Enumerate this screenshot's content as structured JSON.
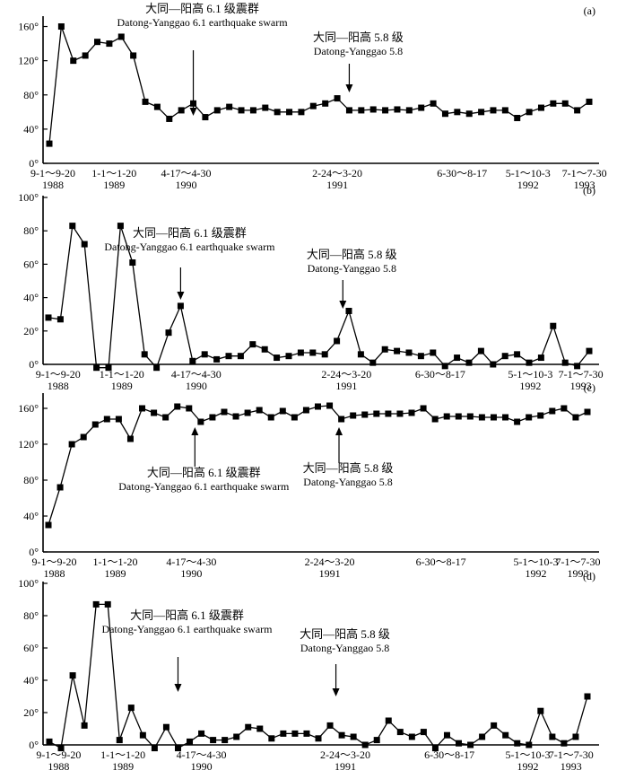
{
  "chart_data": [
    {
      "type": "line",
      "panel_label": "(a)",
      "ylim": [
        0,
        170
      ],
      "yticks": [
        0,
        40,
        80,
        120,
        160
      ],
      "ytick_labels": [
        "0°",
        "40°",
        "80°",
        "120°",
        "160°"
      ],
      "values": [
        23,
        160,
        120,
        126,
        142,
        140,
        148,
        126,
        72,
        66,
        52,
        62,
        70,
        54,
        62,
        66,
        62,
        62,
        65,
        60,
        60,
        60,
        67,
        70,
        76,
        62,
        62,
        63,
        62,
        63,
        62,
        65,
        70,
        58,
        60,
        58,
        60,
        62,
        62,
        53,
        60,
        65,
        70,
        70,
        62,
        72
      ],
      "x_labels": [
        {
          "index": 0.3,
          "line1": "9-1～9-20",
          "line2": "1988"
        },
        {
          "index": 5.4,
          "line1": "1-1～1-20",
          "line2": "1989"
        },
        {
          "index": 11.4,
          "line1": "4-17～4-30",
          "line2": "1990"
        },
        {
          "index": 24.0,
          "line1": "2-24～3-20",
          "line2": "1991"
        },
        {
          "index": 34.4,
          "line1": "6-30～8-17",
          "line2": ""
        },
        {
          "index": 39.9,
          "line1": "5-1～10-3",
          "line2": "1992"
        },
        {
          "index": 44.6,
          "line1": "7-1～7-30",
          "line2": "1993"
        }
      ],
      "events": [
        {
          "index": 12,
          "dir": "down",
          "label_cn": "大同—阳高 6.1 级震群",
          "label_en": "Datong-Yanggao 6.1 earthquake swarm"
        },
        {
          "index": 25,
          "dir": "down",
          "label_cn": "大同—阳高 5.8 级",
          "label_en": "Datong-Yanggao 5.8"
        }
      ]
    },
    {
      "type": "line",
      "panel_label": "(b)",
      "ylim": [
        0,
        100
      ],
      "yticks": [
        0,
        20,
        40,
        60,
        80,
        100
      ],
      "ytick_labels": [
        "0°",
        "20°",
        "40°",
        "60°",
        "80°",
        "100°"
      ],
      "values": [
        28,
        27,
        83,
        72,
        -2,
        -2,
        83,
        61,
        6,
        -2,
        19,
        35,
        2,
        6,
        3,
        5,
        5,
        12,
        9,
        4,
        5,
        7,
        7,
        6,
        14,
        32,
        6,
        1,
        9,
        8,
        7,
        5,
        7,
        -1,
        4,
        1,
        8,
        0,
        5,
        6,
        1,
        4,
        23,
        1,
        -1,
        8
      ],
      "x_labels": [
        {
          "index": 0.8,
          "line1": "9-1～9-20",
          "line2": "1988"
        },
        {
          "index": 6.1,
          "line1": "1-1～1-20",
          "line2": "1989"
        },
        {
          "index": 12.3,
          "line1": "4-17～4-30",
          "line2": "1990"
        },
        {
          "index": 24.8,
          "line1": "2-24～3-20",
          "line2": "1991"
        },
        {
          "index": 32.6,
          "line1": "6-30～8-17",
          "line2": ""
        },
        {
          "index": 40.1,
          "line1": "5-1～10-3",
          "line2": "1992"
        },
        {
          "index": 44.3,
          "line1": "7-1～7-30",
          "line2": "1993"
        }
      ],
      "events": [
        {
          "index": 11,
          "dir": "down",
          "label_cn": "大同—阳高 6.1 级震群",
          "label_en": "Datong-Yanggao 6.1 earthquake swarm"
        },
        {
          "index": 24.5,
          "dir": "down",
          "label_cn": "大同—阳高 5.8 级",
          "label_en": "Datong-Yanggao 5.8"
        }
      ]
    },
    {
      "type": "line",
      "panel_label": "(c)",
      "ylim": [
        0,
        175
      ],
      "yticks": [
        0,
        40,
        80,
        120,
        160
      ],
      "ytick_labels": [
        "0°",
        "40°",
        "80°",
        "120°",
        "160°"
      ],
      "values": [
        30,
        72,
        120,
        128,
        142,
        148,
        148,
        126,
        160,
        155,
        150,
        162,
        160,
        145,
        150,
        156,
        151,
        155,
        158,
        150,
        157,
        150,
        158,
        162,
        163,
        148,
        152,
        153,
        154,
        154,
        154,
        155,
        160,
        148,
        151,
        151,
        151,
        150,
        150,
        150,
        145,
        150,
        152,
        157,
        160,
        150,
        156
      ],
      "x_labels": [
        {
          "index": 0.5,
          "line1": "9-1～9-20",
          "line2": "1988"
        },
        {
          "index": 5.7,
          "line1": "1-1～1-20",
          "line2": "1989"
        },
        {
          "index": 12.2,
          "line1": "4-17～4-30",
          "line2": "1990"
        },
        {
          "index": 24.0,
          "line1": "2-24～3-20",
          "line2": "1991"
        },
        {
          "index": 33.5,
          "line1": "6-30～8-17",
          "line2": ""
        },
        {
          "index": 41.6,
          "line1": "5-1～10-3",
          "line2": "1992"
        },
        {
          "index": 45.2,
          "line1": "7-1～7-30",
          "line2": "1993"
        }
      ],
      "events": [
        {
          "index": 12.5,
          "dir": "up",
          "label_cn": "大同—阳高 6.1 级震群",
          "label_en": "Datong-Yanggao 6.1 earthquake swarm"
        },
        {
          "index": 24.8,
          "dir": "up",
          "label_cn": "大同—阳高 5.8 级",
          "label_en": "Datong-Yanggao 5.8"
        }
      ]
    },
    {
      "type": "line",
      "panel_label": "(d)",
      "ylim": [
        0,
        100
      ],
      "yticks": [
        0,
        20,
        40,
        60,
        80,
        100
      ],
      "ytick_labels": [
        "0°",
        "20°",
        "40°",
        "60°",
        "80°",
        "100°"
      ],
      "values": [
        2,
        -2,
        43,
        12,
        87,
        87,
        3,
        23,
        6,
        -2,
        11,
        -2,
        2,
        7,
        3,
        3,
        5,
        11,
        10,
        4,
        7,
        7,
        7,
        4,
        12,
        6,
        5,
        0,
        3,
        15,
        8,
        5,
        8,
        -2,
        6,
        1,
        0,
        5,
        12,
        6,
        1,
        0,
        21,
        5,
        1,
        5,
        30
      ],
      "x_labels": [
        {
          "index": 0.8,
          "line1": "9-1～9-20",
          "line2": "1988"
        },
        {
          "index": 6.3,
          "line1": "1-1～1-20",
          "line2": "1989"
        },
        {
          "index": 13.0,
          "line1": "4-17～4-30",
          "line2": "1990"
        },
        {
          "index": 25.3,
          "line1": "2-24～3-20",
          "line2": "1991"
        },
        {
          "index": 34.2,
          "line1": "6-30～8-17",
          "line2": ""
        },
        {
          "index": 40.9,
          "line1": "5-1～10-3",
          "line2": "1992"
        },
        {
          "index": 44.6,
          "line1": "7-1～7-30",
          "line2": "1993"
        }
      ],
      "events": [
        {
          "index": 11,
          "dir": "down",
          "label_cn": "大同—阳高 6.1 级震群",
          "label_en": "Datong-Yanggao 6.1 earthquake swarm"
        },
        {
          "index": 24.5,
          "dir": "down",
          "label_cn": "大同—阳高 5.8 级",
          "label_en": "Datong-Yanggao 5.8"
        }
      ]
    }
  ]
}
